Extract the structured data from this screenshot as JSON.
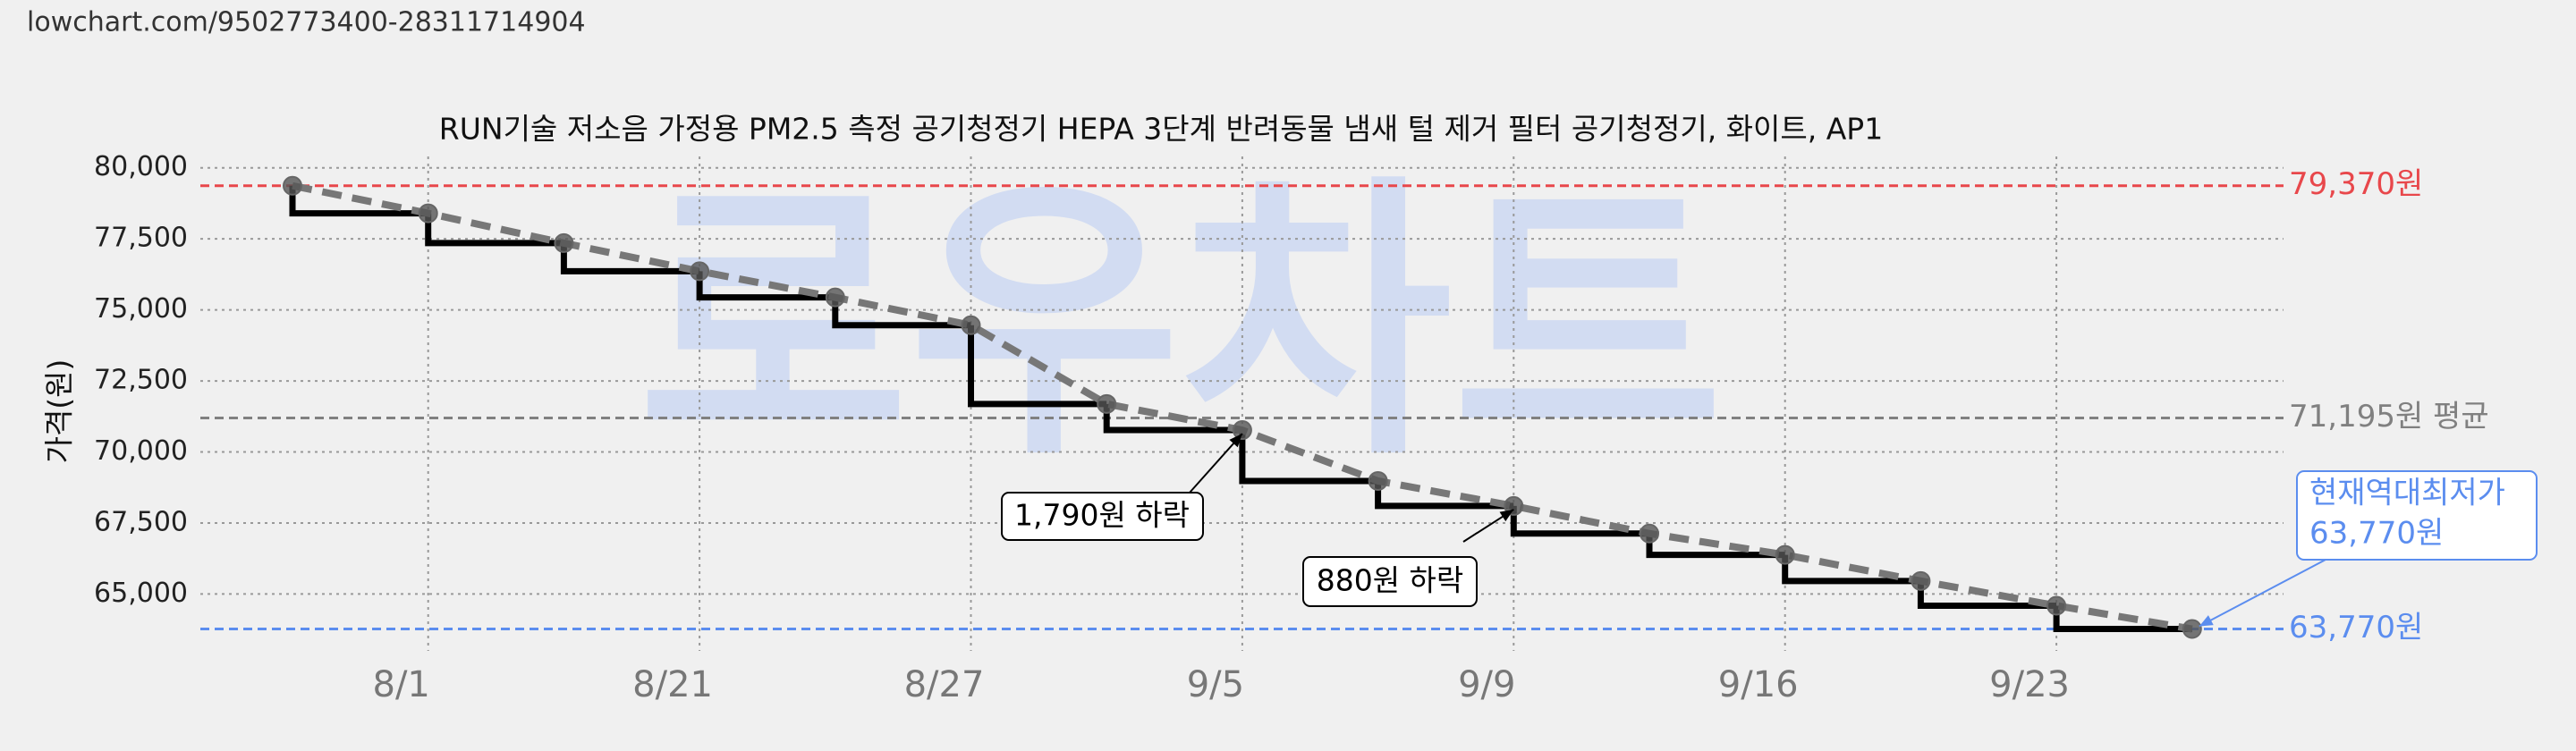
{
  "url": "lowchart.com/9502773400-28311714904",
  "chart_data": {
    "type": "step",
    "title": "RUN기술 저소음 가정용 PM2.5 측정 공기청정기 HEPA 3단계 반려동물 냄새 털 제거 필터 공기청정기, 화이트, AP1",
    "ylabel": "가격(원)",
    "watermark": "로우차트",
    "categories": [
      null,
      "8/1",
      null,
      "8/21",
      null,
      "8/27",
      null,
      "9/5",
      null,
      "9/9",
      null,
      "9/16",
      null,
      "9/23",
      null
    ],
    "values": [
      79370,
      78400,
      77350,
      76360,
      75440,
      74460,
      71690,
      70770,
      68980,
      68100,
      67130,
      66380,
      65460,
      64590,
      63770
    ],
    "color": "#000000",
    "trend_color": "#777777",
    "ylim": [
      63000,
      80400
    ],
    "yticks": [
      {
        "value": 65000,
        "label": "65,000"
      },
      {
        "value": 67500,
        "label": "67,500"
      },
      {
        "value": 70000,
        "label": "70,000"
      },
      {
        "value": 72500,
        "label": "72,500"
      },
      {
        "value": 75000,
        "label": "75,000"
      },
      {
        "value": 77500,
        "label": "77,500"
      },
      {
        "value": 80000,
        "label": "80,000"
      }
    ],
    "grid": true,
    "reference_lines": [
      {
        "value": 79370,
        "label": "79,370원",
        "color": "#e8474b"
      },
      {
        "value": 71195,
        "label": "71,195원 평균",
        "color": "#808080"
      },
      {
        "value": 63770,
        "label": "63,770원",
        "color": "#5b8def"
      }
    ],
    "annotations": [
      {
        "text": "1,790원 하락"
      },
      {
        "text": "880원 하락"
      },
      {
        "lines": [
          "현재역대최저가",
          "63,770원"
        ],
        "color": "#5b8def"
      }
    ]
  }
}
